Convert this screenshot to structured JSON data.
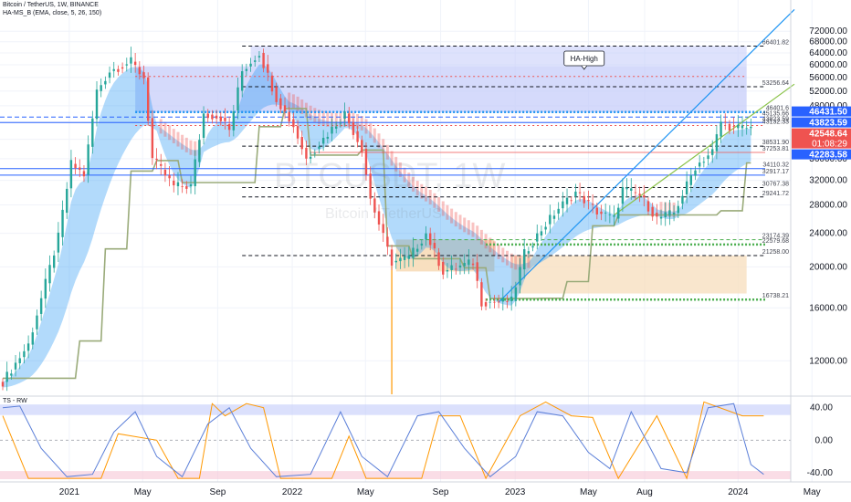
{
  "header": {
    "symbol_line": "Bitcoin / TetherUS, 1W, BINANCE",
    "indicator_line": "HA-MS_B (EMA, close, 5, 26, 150)",
    "sub_indicator": "TS - RW"
  },
  "watermark": {
    "symbol": "BTCUSDT, 1W",
    "name": "Bitcoin / TetherUS"
  },
  "annotation": {
    "ha_high": "HA-High"
  },
  "colors": {
    "bull": "#26a69a",
    "bear": "#ef5350",
    "up_line": "#2962ff",
    "trend_up": "#2196f3",
    "trend_green": "#8bc34a",
    "staircase": "#9aab7a",
    "orange": "#ff9800",
    "zone_blue": "#c3cbfa",
    "zone_orange": "#f7dcb8",
    "dots_blue": "#2196f3",
    "dots_green": "#4caf50",
    "label_gray": "#b2b5be"
  },
  "chart_data": {
    "type": "candlestick",
    "title": "Bitcoin / TetherUS, 1W, BINANCE",
    "y_axis": {
      "scale": "log",
      "range": [
        10000,
        82000
      ],
      "ticks": [
        "72000.00",
        "68000.00",
        "64000.00",
        "60000.00",
        "56000.00",
        "52000.00",
        "48000.00",
        "44000.00",
        "40000.00",
        "36000.00",
        "32000.00",
        "28000.00",
        "24000.00",
        "20000.00",
        "16000.00",
        "12000.00"
      ]
    },
    "x_axis": {
      "range": [
        "2020-09-14",
        "2024-06-10"
      ],
      "ticks": [
        {
          "label": "2021",
          "date": "2021-01-01"
        },
        {
          "label": "May",
          "date": "2021-05-01"
        },
        {
          "label": "Sep",
          "date": "2021-09-01"
        },
        {
          "label": "2022",
          "date": "2022-01-01"
        },
        {
          "label": "May",
          "date": "2022-05-01"
        },
        {
          "label": "Sep",
          "date": "2022-09-01"
        },
        {
          "label": "2023",
          "date": "2023-01-01"
        },
        {
          "label": "May",
          "date": "2023-05-01"
        },
        {
          "label": "Aug",
          "date": "2023-08-01"
        },
        {
          "label": "2024",
          "date": "2024-01-01"
        },
        {
          "label": "May",
          "date": "2024-05-01"
        }
      ]
    },
    "price_anchors": [
      {
        "date": "2020-09-14",
        "close": 10700
      },
      {
        "date": "2020-10-26",
        "close": 13100
      },
      {
        "date": "2020-12-14",
        "close": 23500
      },
      {
        "date": "2021-01-04",
        "close": 35000
      },
      {
        "date": "2021-01-25",
        "close": 33000
      },
      {
        "date": "2021-02-15",
        "close": 52000
      },
      {
        "date": "2021-03-08",
        "close": 58000
      },
      {
        "date": "2021-04-12",
        "close": 61000
      },
      {
        "date": "2021-05-03",
        "close": 56000
      },
      {
        "date": "2021-05-17",
        "close": 36000
      },
      {
        "date": "2021-06-21",
        "close": 31000
      },
      {
        "date": "2021-07-19",
        "close": 31000
      },
      {
        "date": "2021-08-09",
        "close": 46000
      },
      {
        "date": "2021-09-06",
        "close": 45000
      },
      {
        "date": "2021-09-20",
        "close": 42000
      },
      {
        "date": "2021-10-11",
        "close": 58000
      },
      {
        "date": "2021-11-08",
        "close": 64000
      },
      {
        "date": "2021-12-06",
        "close": 50000
      },
      {
        "date": "2022-01-03",
        "close": 43000
      },
      {
        "date": "2022-01-24",
        "close": 36000
      },
      {
        "date": "2022-03-28",
        "close": 46000
      },
      {
        "date": "2022-04-25",
        "close": 38000
      },
      {
        "date": "2022-05-09",
        "close": 29000
      },
      {
        "date": "2022-06-13",
        "close": 20500
      },
      {
        "date": "2022-07-11",
        "close": 21000
      },
      {
        "date": "2022-08-08",
        "close": 24000
      },
      {
        "date": "2022-09-05",
        "close": 19500
      },
      {
        "date": "2022-10-24",
        "close": 20500
      },
      {
        "date": "2022-11-07",
        "close": 16500
      },
      {
        "date": "2022-12-26",
        "close": 16600
      },
      {
        "date": "2023-01-16",
        "close": 21500
      },
      {
        "date": "2023-02-13",
        "close": 24500
      },
      {
        "date": "2023-03-13",
        "close": 27500
      },
      {
        "date": "2023-04-10",
        "close": 30000
      },
      {
        "date": "2023-05-15",
        "close": 27000
      },
      {
        "date": "2023-06-12",
        "close": 26000
      },
      {
        "date": "2023-06-26",
        "close": 30500
      },
      {
        "date": "2023-07-24",
        "close": 29500
      },
      {
        "date": "2023-08-21",
        "close": 26000
      },
      {
        "date": "2023-09-18",
        "close": 26800
      },
      {
        "date": "2023-10-23",
        "close": 34500
      },
      {
        "date": "2023-11-20",
        "close": 37500
      },
      {
        "date": "2023-12-04",
        "close": 44000
      },
      {
        "date": "2023-12-25",
        "close": 42500
      },
      {
        "date": "2024-01-08",
        "close": 42500
      },
      {
        "date": "2024-01-22",
        "close": 42548.64
      }
    ],
    "levels": [
      {
        "value": 66401.82,
        "label": "66401.82",
        "style": "dashed"
      },
      {
        "value": 53256.64,
        "label": "53256.64",
        "style": "dashed"
      },
      {
        "value": 46401.6,
        "label": "46401.6",
        "style": "dotted-blue"
      },
      {
        "value": 45135.66,
        "label": "45135.66",
        "style": "dashed-blue"
      },
      {
        "value": 43823.59,
        "label": "43823.59",
        "style": "solid-blue"
      },
      {
        "value": 43132.33,
        "label": "43132.33",
        "style": "dotted-red"
      },
      {
        "value": 38531.9,
        "label": "38531.90",
        "style": "dashed"
      },
      {
        "value": 37253.81,
        "label": "37253.81",
        "style": "solid-red"
      },
      {
        "value": 34110.32,
        "label": "34110.32",
        "style": "solid-blue"
      },
      {
        "value": 32917.17,
        "label": "32917.17",
        "style": "solid-blue"
      },
      {
        "value": 30767.38,
        "label": "30767.38",
        "style": "dashed"
      },
      {
        "value": 29241.72,
        "label": "29241.72",
        "style": "dashed"
      },
      {
        "value": 23174.39,
        "label": "23174.39",
        "style": "dashed-green"
      },
      {
        "value": 22579.68,
        "label": "22579.68",
        "style": "dotted-green"
      },
      {
        "value": 21258.0,
        "label": "21258.00",
        "style": "dashed"
      },
      {
        "value": 16738.21,
        "label": "16738.21",
        "style": "dotted-green"
      }
    ],
    "price_badges": [
      {
        "value": 46431.5,
        "text": "46431.50",
        "color": "#2962ff"
      },
      {
        "value": 43823.59,
        "text": "43823.59",
        "color": "#2962ff"
      },
      {
        "value": 42548.64,
        "text": "42548.64",
        "sub": "01:08:29",
        "color": "#ef5350"
      },
      {
        "value": 42283.58,
        "text": "42283.58",
        "color": "#2962ff"
      }
    ],
    "oscillator": {
      "name": "TS - RW",
      "range": [
        -48,
        52
      ],
      "ticks": [
        "40.00",
        "0.00",
        "-40.00"
      ],
      "series": [
        {
          "name": "",
          "color": "#ff9800",
          "points": [
            {
              "date": "2020-09-14",
              "v": 30
            },
            {
              "date": "2020-10-26",
              "v": -47
            },
            {
              "date": "2021-02-22",
              "v": -47
            },
            {
              "date": "2021-03-22",
              "v": 8
            },
            {
              "date": "2021-05-24",
              "v": 0
            },
            {
              "date": "2021-06-28",
              "v": -47
            },
            {
              "date": "2021-08-02",
              "v": -47
            },
            {
              "date": "2021-08-23",
              "v": 45
            },
            {
              "date": "2021-09-13",
              "v": 30
            },
            {
              "date": "2021-10-18",
              "v": 45
            },
            {
              "date": "2021-11-15",
              "v": 40
            },
            {
              "date": "2021-12-13",
              "v": -47
            },
            {
              "date": "2022-03-07",
              "v": -47
            },
            {
              "date": "2022-04-04",
              "v": 5
            },
            {
              "date": "2022-05-02",
              "v": -47
            },
            {
              "date": "2022-08-01",
              "v": -47
            },
            {
              "date": "2022-08-29",
              "v": 30
            },
            {
              "date": "2022-10-03",
              "v": 30
            },
            {
              "date": "2022-11-14",
              "v": -47
            },
            {
              "date": "2023-01-09",
              "v": 30
            },
            {
              "date": "2023-02-20",
              "v": 47
            },
            {
              "date": "2023-04-03",
              "v": 30
            },
            {
              "date": "2023-05-08",
              "v": 28
            },
            {
              "date": "2023-06-19",
              "v": -47
            },
            {
              "date": "2023-08-21",
              "v": 30
            },
            {
              "date": "2023-10-09",
              "v": -47
            },
            {
              "date": "2023-11-06",
              "v": 47
            },
            {
              "date": "2024-01-08",
              "v": 30
            },
            {
              "date": "2024-02-12",
              "v": 30
            }
          ]
        },
        {
          "name": "",
          "color": "#5b7fd8",
          "points": [
            {
              "date": "2020-09-14",
              "v": 40
            },
            {
              "date": "2020-10-12",
              "v": 42
            },
            {
              "date": "2020-11-16",
              "v": -10
            },
            {
              "date": "2020-12-28",
              "v": -45
            },
            {
              "date": "2021-02-08",
              "v": -42
            },
            {
              "date": "2021-03-15",
              "v": 10
            },
            {
              "date": "2021-04-19",
              "v": 35
            },
            {
              "date": "2021-05-24",
              "v": -20
            },
            {
              "date": "2021-07-05",
              "v": -45
            },
            {
              "date": "2021-08-16",
              "v": 20
            },
            {
              "date": "2021-09-20",
              "v": 40
            },
            {
              "date": "2021-10-25",
              "v": -10
            },
            {
              "date": "2021-12-06",
              "v": -45
            },
            {
              "date": "2022-01-31",
              "v": -42
            },
            {
              "date": "2022-03-21",
              "v": 35
            },
            {
              "date": "2022-04-25",
              "v": -20
            },
            {
              "date": "2022-06-06",
              "v": -45
            },
            {
              "date": "2022-07-25",
              "v": 30
            },
            {
              "date": "2022-08-29",
              "v": 35
            },
            {
              "date": "2022-10-10",
              "v": -10
            },
            {
              "date": "2022-11-21",
              "v": -45
            },
            {
              "date": "2023-01-02",
              "v": -20
            },
            {
              "date": "2023-02-06",
              "v": 35
            },
            {
              "date": "2023-03-20",
              "v": 30
            },
            {
              "date": "2023-05-01",
              "v": -15
            },
            {
              "date": "2023-06-05",
              "v": -35
            },
            {
              "date": "2023-07-10",
              "v": 35
            },
            {
              "date": "2023-08-28",
              "v": -35
            },
            {
              "date": "2023-10-09",
              "v": -40
            },
            {
              "date": "2023-11-13",
              "v": 40
            },
            {
              "date": "2023-12-25",
              "v": 45
            },
            {
              "date": "2024-01-22",
              "v": -30
            },
            {
              "date": "2024-02-12",
              "v": -42
            }
          ]
        }
      ]
    }
  }
}
